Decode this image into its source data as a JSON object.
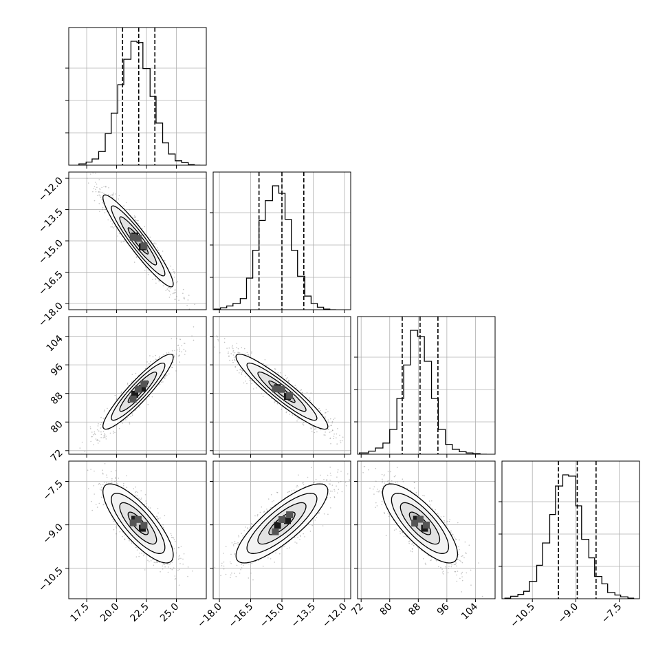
{
  "chart_data": {
    "type": "corner",
    "parameters": [
      {
        "range": [
          16.0,
          27.5
        ],
        "ticks": [
          17.5,
          20.0,
          22.5,
          25.0
        ],
        "tick_labels": [
          "17.5",
          "20.0",
          "22.5",
          "25.0"
        ],
        "quantiles": [
          20.5,
          21.85,
          23.2
        ],
        "hist": {
          "edges": [
            16.85,
            17.45,
            17.95,
            18.5,
            19.05,
            19.55,
            20.1,
            20.6,
            21.2,
            21.7,
            22.2,
            22.8,
            23.3,
            23.85,
            24.35,
            24.9,
            25.45,
            26.0,
            26.5,
            27.0
          ],
          "counts": [
            0.01,
            0.025,
            0.05,
            0.11,
            0.255,
            0.42,
            0.65,
            0.855,
            1.0,
            0.99,
            0.78,
            0.555,
            0.34,
            0.18,
            0.09,
            0.035,
            0.02,
            0.005,
            0.0
          ]
        }
      },
      {
        "range": [
          -18.3,
          -11.7
        ],
        "ticks": [
          -18.0,
          -16.5,
          -15.0,
          -13.5,
          -12.0
        ],
        "tick_labels": [
          "−18.0",
          "−16.5",
          "−15.0",
          "−13.5",
          "−12.0"
        ],
        "quantiles": [
          -16.1,
          -15.0,
          -13.95
        ],
        "hist": {
          "edges": [
            -18.25,
            -17.95,
            -17.65,
            -17.35,
            -17.0,
            -16.7,
            -16.4,
            -16.1,
            -15.8,
            -15.45,
            -15.15,
            -14.85,
            -14.55,
            -14.25,
            -13.9,
            -13.6,
            -13.3,
            -13.0,
            -12.7,
            -12.4
          ],
          "counts": [
            0.005,
            0.015,
            0.03,
            0.05,
            0.09,
            0.255,
            0.48,
            0.72,
            0.88,
            1.0,
            0.94,
            0.73,
            0.48,
            0.27,
            0.11,
            0.05,
            0.02,
            0.005,
            0.0
          ]
        }
      },
      {
        "range": [
          71.0,
          109.5
        ],
        "ticks": [
          72,
          80,
          88,
          96,
          104
        ],
        "tick_labels": [
          "72",
          "80",
          "88",
          "96",
          "104"
        ],
        "quantiles": [
          83.5,
          88.5,
          93.5
        ],
        "hist": {
          "edges": [
            71.5,
            74.1,
            76.0,
            78.1,
            80.0,
            82.0,
            83.9,
            85.8,
            87.8,
            89.7,
            91.7,
            93.6,
            95.6,
            97.5,
            99.5,
            101.4,
            103.3,
            105.3,
            107.2
          ],
          "counts": [
            0.01,
            0.025,
            0.05,
            0.09,
            0.2,
            0.45,
            0.72,
            1.0,
            0.95,
            0.75,
            0.45,
            0.2,
            0.08,
            0.04,
            0.02,
            0.01,
            0.005,
            0.0
          ]
        }
      },
      {
        "range": [
          -11.55,
          -6.8
        ],
        "ticks": [
          -10.5,
          -9.0,
          -7.5
        ],
        "tick_labels": [
          "−10.5",
          "−9.0",
          "−7.5"
        ],
        "quantiles": [
          -9.6,
          -8.95,
          -8.3
        ],
        "hist": {
          "edges": [
            -11.45,
            -11.25,
            -11.0,
            -10.8,
            -10.6,
            -10.35,
            -10.15,
            -9.9,
            -9.7,
            -9.45,
            -9.25,
            -9.0,
            -8.8,
            -8.55,
            -8.35,
            -8.1,
            -7.9,
            -7.65,
            -7.45,
            -7.2,
            -7.0
          ],
          "counts": [
            0.005,
            0.02,
            0.035,
            0.06,
            0.14,
            0.27,
            0.45,
            0.68,
            0.91,
            1.0,
            0.99,
            0.75,
            0.48,
            0.33,
            0.18,
            0.12,
            0.05,
            0.03,
            0.015,
            0.005
          ]
        }
      }
    ],
    "pairs": [
      {
        "row": 1,
        "col": 0,
        "mean": [
          21.8,
          -15.0
        ],
        "sd": [
          1.4,
          1.05
        ],
        "corr": -0.94
      },
      {
        "row": 2,
        "col": 0,
        "mean": [
          21.8,
          88.5
        ],
        "sd": [
          1.4,
          5.0
        ],
        "corr": 0.92
      },
      {
        "row": 2,
        "col": 1,
        "mean": [
          -15.0,
          88.5
        ],
        "sd": [
          1.05,
          5.0
        ],
        "corr": -0.93
      },
      {
        "row": 3,
        "col": 0,
        "mean": [
          21.8,
          -8.95
        ],
        "sd": [
          1.4,
          0.65
        ],
        "corr": -0.8
      },
      {
        "row": 3,
        "col": 1,
        "mean": [
          -15.0,
          -8.95
        ],
        "sd": [
          1.05,
          0.65
        ],
        "corr": 0.82
      },
      {
        "row": 3,
        "col": 2,
        "mean": [
          88.5,
          -8.95
        ],
        "sd": [
          5.0,
          0.65
        ],
        "corr": -0.78
      }
    ],
    "contour_levels": [
      {
        "radius": 0.6,
        "fill": "#c8c8c8"
      },
      {
        "radius": 1.1,
        "fill": "#e2e2e2"
      },
      {
        "radius": 1.6,
        "fill": "#f2f2f2"
      },
      {
        "radius": 2.1,
        "fill": "#fbfbfb"
      }
    ],
    "colors": {
      "line": "#000000",
      "grid": "#b0b0b0",
      "points": "#7a7a7a",
      "core": "#1a1a1a"
    }
  }
}
